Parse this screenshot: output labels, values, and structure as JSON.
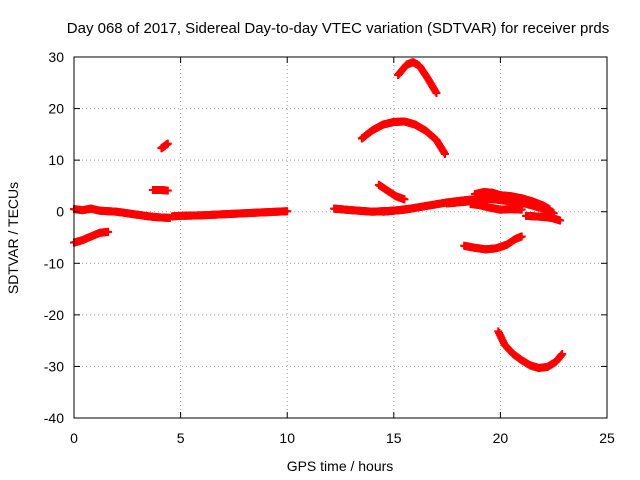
{
  "chart_data": {
    "type": "scatter",
    "title": "Day 068 of 2017, Sidereal Day-to-day VTEC variation (SDTVAR) for receiver prds",
    "xlabel": "GPS time / hours",
    "ylabel": "SDTVAR / TECUs",
    "xlim": [
      0,
      25
    ],
    "ylim": [
      -40,
      30
    ],
    "xticks": [
      0,
      5,
      10,
      15,
      20,
      25
    ],
    "yticks": [
      -40,
      -30,
      -20,
      -10,
      0,
      10,
      20,
      30
    ],
    "grid": true,
    "legend": "none",
    "marker": "plus",
    "color": "#ff0000",
    "series": [
      {
        "values": [
          [
            0.0,
            0.5
          ],
          [
            0.4,
            0.3
          ],
          [
            0.8,
            0.6
          ],
          [
            1.2,
            0.2
          ],
          [
            1.6,
            0.1
          ],
          [
            2.0,
            0.0
          ],
          [
            2.5,
            -0.3
          ],
          [
            3.0,
            -0.6
          ],
          [
            3.5,
            -0.9
          ],
          [
            4.0,
            -1.1
          ],
          [
            4.5,
            -1.2
          ]
        ]
      },
      {
        "values": [
          [
            0.0,
            -6.0
          ],
          [
            0.4,
            -5.5
          ],
          [
            0.8,
            -4.8
          ],
          [
            1.2,
            -4.1
          ],
          [
            1.6,
            -3.9
          ]
        ]
      },
      {
        "values": [
          [
            3.7,
            4.2
          ],
          [
            4.1,
            4.2
          ],
          [
            4.4,
            4.1
          ]
        ]
      },
      {
        "values": [
          [
            4.1,
            12.3
          ],
          [
            4.3,
            12.9
          ],
          [
            4.4,
            13.2
          ]
        ]
      },
      {
        "values": [
          [
            4.6,
            -0.9
          ],
          [
            5.0,
            -0.8
          ],
          [
            6.0,
            -0.7
          ],
          [
            7.0,
            -0.5
          ],
          [
            8.0,
            -0.3
          ],
          [
            9.0,
            -0.1
          ],
          [
            10.0,
            0.1
          ]
        ]
      },
      {
        "values": [
          [
            12.2,
            0.6
          ],
          [
            13.0,
            0.3
          ],
          [
            14.0,
            0.0
          ],
          [
            15.0,
            0.2
          ],
          [
            15.8,
            0.6
          ]
        ]
      },
      {
        "values": [
          [
            14.3,
            5.2
          ],
          [
            14.7,
            4.1
          ],
          [
            15.1,
            3.0
          ],
          [
            15.5,
            2.4
          ]
        ]
      },
      {
        "values": [
          [
            14.5,
            0.0
          ],
          [
            15.5,
            0.4
          ],
          [
            16.5,
            1.1
          ],
          [
            17.5,
            1.8
          ],
          [
            18.5,
            2.3
          ],
          [
            19.5,
            2.5
          ],
          [
            20.5,
            2.0
          ],
          [
            21.0,
            1.0
          ]
        ]
      },
      {
        "values": [
          [
            15.2,
            26.5
          ],
          [
            15.6,
            28.5
          ],
          [
            15.9,
            29.0
          ],
          [
            16.2,
            28.3
          ],
          [
            16.6,
            25.8
          ],
          [
            17.0,
            23.0
          ]
        ]
      },
      {
        "values": [
          [
            13.5,
            14.2
          ],
          [
            14.0,
            15.8
          ],
          [
            14.5,
            16.9
          ],
          [
            15.0,
            17.4
          ],
          [
            15.5,
            17.5
          ],
          [
            16.0,
            16.9
          ],
          [
            16.5,
            15.7
          ],
          [
            17.0,
            13.9
          ],
          [
            17.4,
            11.2
          ]
        ]
      },
      {
        "values": [
          [
            17.5,
            1.6
          ],
          [
            18.5,
            2.0
          ],
          [
            19.0,
            2.3
          ],
          [
            19.5,
            2.6
          ],
          [
            20.0,
            2.4
          ],
          [
            20.5,
            2.2
          ],
          [
            21.0,
            1.8
          ],
          [
            21.5,
            1.2
          ],
          [
            22.0,
            0.6
          ],
          [
            22.5,
            -0.3
          ]
        ]
      },
      {
        "values": [
          [
            18.8,
            3.4
          ],
          [
            19.2,
            3.8
          ],
          [
            19.6,
            3.7
          ],
          [
            20.0,
            3.2
          ],
          [
            20.5,
            3.0
          ],
          [
            21.0,
            2.6
          ],
          [
            21.5,
            2.0
          ],
          [
            22.0,
            1.2
          ],
          [
            22.3,
            0.5
          ]
        ]
      },
      {
        "values": [
          [
            18.6,
            1.5
          ],
          [
            19.0,
            1.3
          ],
          [
            19.5,
            0.8
          ],
          [
            20.0,
            0.4
          ],
          [
            20.5,
            0.5
          ],
          [
            21.0,
            0.4
          ]
        ]
      },
      {
        "values": [
          [
            21.2,
            -0.8
          ],
          [
            21.6,
            -0.9
          ],
          [
            22.0,
            -1.0
          ],
          [
            22.4,
            -1.2
          ],
          [
            22.8,
            -1.7
          ]
        ]
      },
      {
        "values": [
          [
            18.3,
            -6.6
          ],
          [
            18.8,
            -7.0
          ],
          [
            19.3,
            -7.3
          ],
          [
            19.8,
            -7.1
          ],
          [
            20.3,
            -6.4
          ],
          [
            20.7,
            -5.3
          ],
          [
            21.0,
            -4.8
          ]
        ]
      },
      {
        "values": [
          [
            19.9,
            -23.2
          ],
          [
            20.2,
            -25.8
          ],
          [
            20.6,
            -27.6
          ],
          [
            21.0,
            -28.8
          ],
          [
            21.4,
            -29.8
          ],
          [
            21.8,
            -30.3
          ],
          [
            22.2,
            -30.1
          ],
          [
            22.6,
            -29.1
          ],
          [
            22.9,
            -27.6
          ]
        ]
      }
    ]
  }
}
